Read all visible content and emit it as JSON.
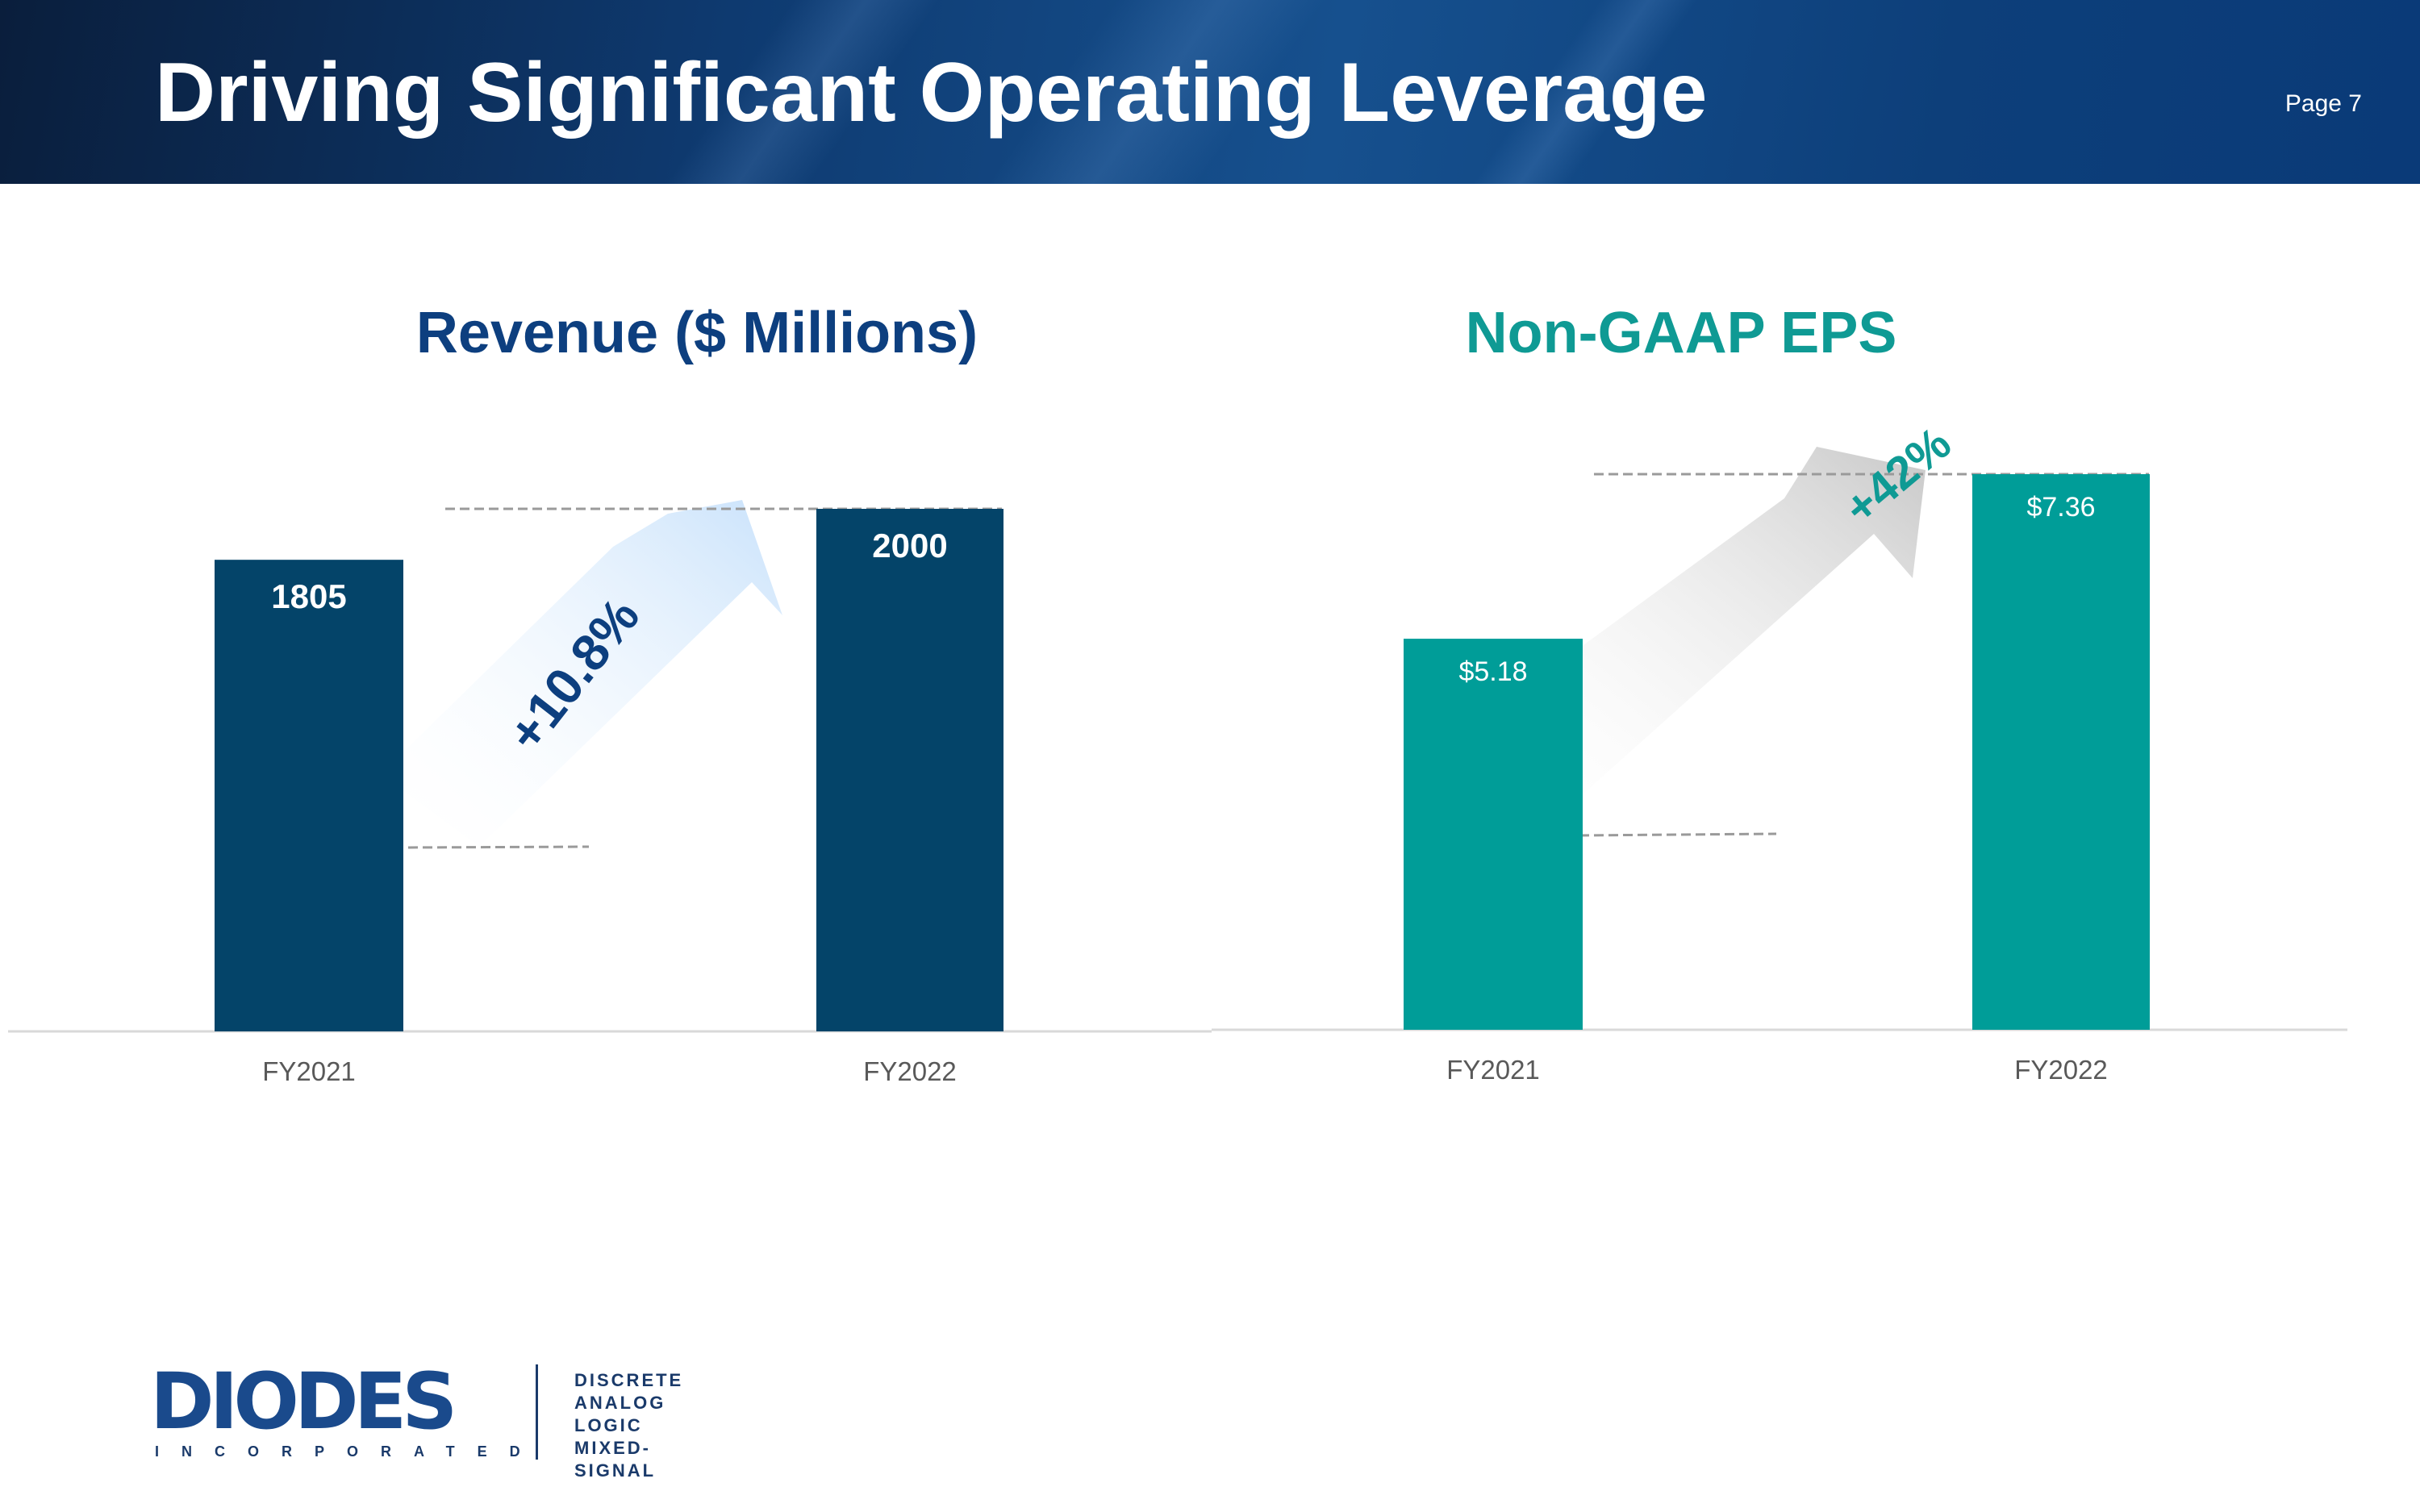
{
  "header": {
    "title": "Driving Significant Operating Leverage",
    "page_label": "Page 7"
  },
  "chart_data": [
    {
      "type": "bar",
      "title": "Revenue ($ Millions)",
      "categories": [
        "FY2021",
        "FY2022"
      ],
      "values": [
        1805,
        2000
      ],
      "value_labels": [
        "1805",
        "2000"
      ],
      "growth_label": "+10.8%",
      "bar_color": "#044469",
      "title_color": "#0d3f7f",
      "growth_color": "#0d3f7f",
      "xlabel": "",
      "ylabel": ""
    },
    {
      "type": "bar",
      "title": "Non-GAAP EPS",
      "categories": [
        "FY2021",
        "FY2022"
      ],
      "values": [
        5.18,
        7.36
      ],
      "value_labels": [
        "$5.18",
        "$7.36"
      ],
      "growth_label": "+42%",
      "bar_color": "#009d98",
      "title_color": "#0f9a94",
      "growth_color": "#0f9a94",
      "xlabel": "",
      "ylabel": ""
    }
  ],
  "logo": {
    "wordmark": "DIODES",
    "subtitle": "INCORPORATED",
    "lines": [
      "DISCRETE",
      "ANALOG",
      "LOGIC",
      "MIXED-SIGNAL"
    ]
  }
}
